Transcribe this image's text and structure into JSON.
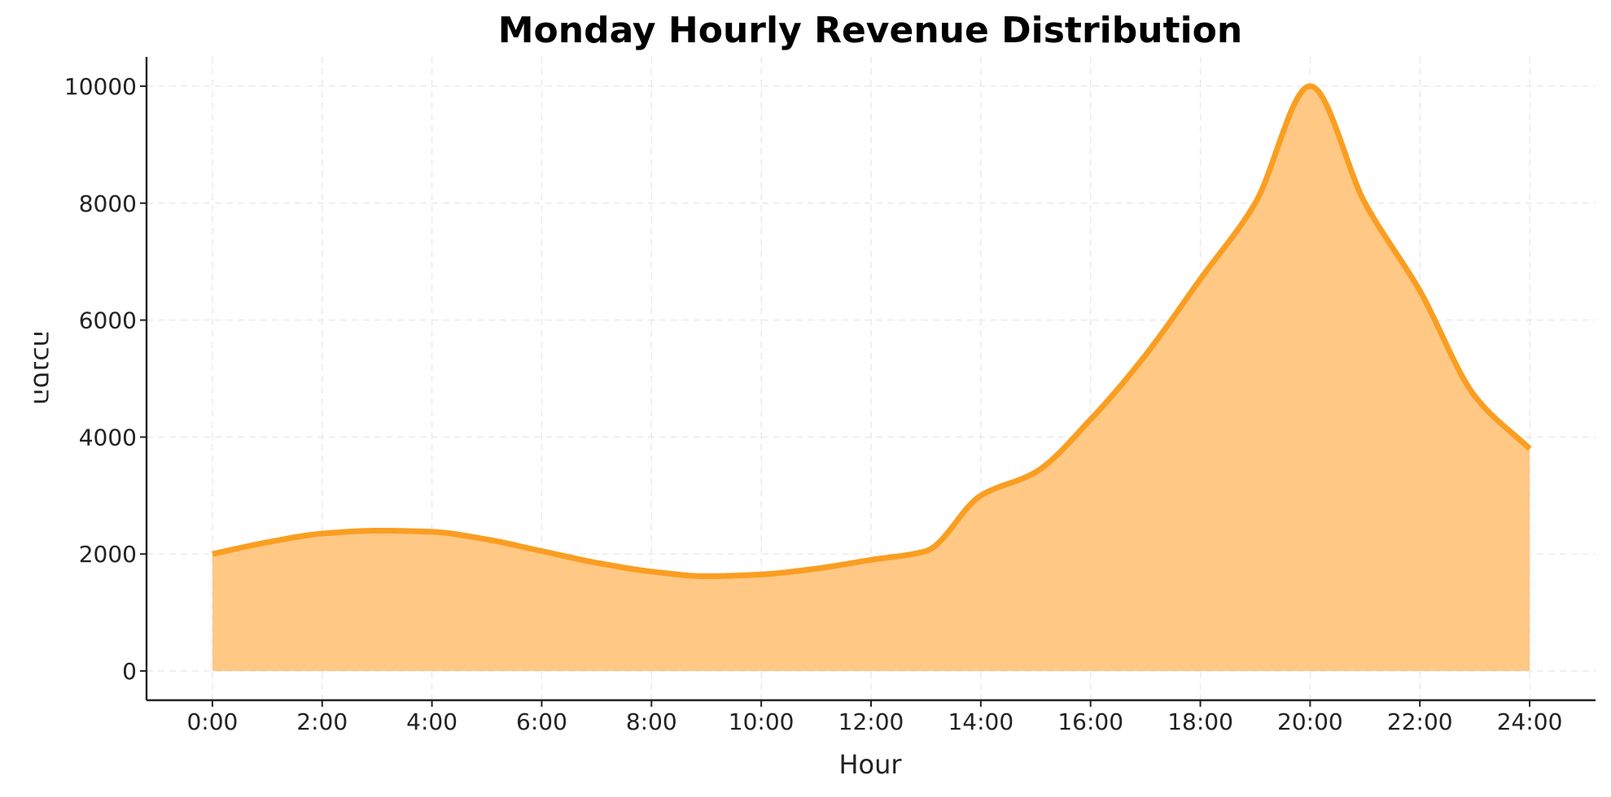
{
  "chart_data": {
    "type": "area",
    "title": "Monday Hourly Revenue Distribution",
    "xlabel": "Hour",
    "ylabel": "הסנכה",
    "x_tick_labels": [
      "0:00",
      "2:00",
      "4:00",
      "6:00",
      "8:00",
      "10:00",
      "12:00",
      "14:00",
      "16:00",
      "18:00",
      "20:00",
      "22:00",
      "24:00"
    ],
    "y_tick_labels": [
      "0",
      "2000",
      "4000",
      "6000",
      "8000",
      "10000"
    ],
    "xlim": [
      -1.2,
      25.2
    ],
    "ylim": [
      -500,
      10500
    ],
    "grid": true,
    "legend": "none",
    "series": [
      {
        "x": [
          0,
          1,
          2,
          3,
          4,
          5,
          6,
          7,
          8,
          9,
          10,
          11,
          12,
          13,
          14,
          15,
          16,
          17,
          18,
          19,
          20,
          21,
          22,
          23,
          24
        ],
        "values": [
          2000,
          2200,
          2350,
          2400,
          2380,
          2250,
          2050,
          1850,
          1700,
          1620,
          1650,
          1750,
          1900,
          2050,
          3000,
          3400,
          4300,
          5400,
          6700,
          8000,
          10000,
          8000,
          6500,
          4700,
          3800
        ]
      }
    ],
    "colors": {
      "line": "#FA9E22",
      "fill": "#FFC885",
      "grid": "#E9E9E9",
      "axis": "#222222"
    }
  }
}
